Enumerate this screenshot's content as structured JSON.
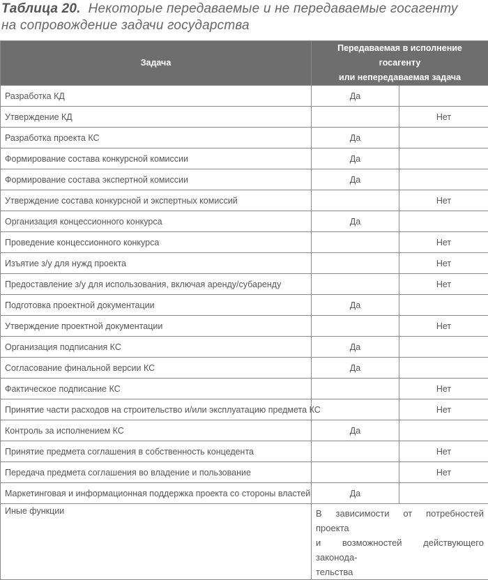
{
  "title": {
    "label": "Таблица 20.",
    "text_line1": "Некоторые передаваемые и не передаваемые госагенту",
    "text_line2": "на сопровождение задачи государства"
  },
  "header": {
    "task": "Задача",
    "status_line1": "Передаваемая в исполнение госагенту",
    "status_line2": "или непередаваемая задача"
  },
  "rows": [
    {
      "task": "Разработка КД",
      "yes": "Да",
      "no": ""
    },
    {
      "task": "Утверждение КД",
      "yes": "",
      "no": "Нет"
    },
    {
      "task": "Разработка проекта КС",
      "yes": "Да",
      "no": ""
    },
    {
      "task": "Формирование состава конкурсной комиссии",
      "yes": "Да",
      "no": ""
    },
    {
      "task": "Формирование состава экспертной комиссии",
      "yes": "Да",
      "no": ""
    },
    {
      "task": "Утверждение состава конкурсной и экспертных комиссий",
      "yes": "",
      "no": "Нет"
    },
    {
      "task": "Организация концессионного конкурса",
      "yes": "Да",
      "no": ""
    },
    {
      "task": "Проведение концессионного конкурса",
      "yes": "",
      "no": "Нет"
    },
    {
      "task": "Изъятие з/у для нужд проекта",
      "yes": "",
      "no": "Нет"
    },
    {
      "task": "Предоставление з/у для использования, включая аренду/субаренду",
      "yes": "",
      "no": "Нет"
    },
    {
      "task": "Подготовка проектной документации",
      "yes": "Да",
      "no": ""
    },
    {
      "task": "Утверждение проектной документации",
      "yes": "",
      "no": "Нет"
    },
    {
      "task": "Организация подписания КС",
      "yes": "Да",
      "no": ""
    },
    {
      "task": "Согласование финальной версии КС",
      "yes": "Да",
      "no": ""
    },
    {
      "task": "Фактическое подписание КС",
      "yes": "",
      "no": "Нет"
    },
    {
      "task": "Принятие части расходов на строительство и/или эксплуатацию предмета КС",
      "yes": "",
      "no": "Нет"
    },
    {
      "task": "Контроль за исполнением КС",
      "yes": "Да",
      "no": ""
    },
    {
      "task": "Принятие предмета соглашения в собственность концедента",
      "yes": "",
      "no": "Нет"
    },
    {
      "task": "Передача предмета соглашения во владение и пользование",
      "yes": "",
      "no": "Нет"
    },
    {
      "task": "Маркетинговая и информационная поддержка проекта со стороны властей",
      "yes": "Да",
      "no": ""
    }
  ],
  "last_row": {
    "task": "Иные функции",
    "note_lines": [
      "В зависимости от потребностей проекта",
      "и возможностей действующего законода-",
      "тельства"
    ]
  }
}
